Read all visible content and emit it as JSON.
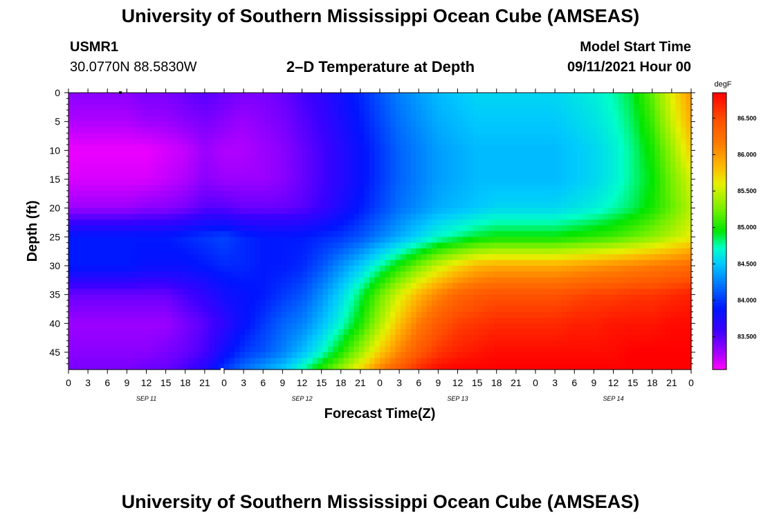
{
  "header": {
    "title": "University of Southern Mississippi Ocean Cube (AMSEAS)",
    "station": "USMR1",
    "location": "30.0770N  88.5830W",
    "subtitle": "2–D Temperature at Depth",
    "model_start_label": "Model Start Time",
    "model_start_value": "09/11/2021 Hour 00"
  },
  "footer": {
    "title": "University of Southern Mississippi Ocean Cube (AMSEAS)"
  },
  "chart_data": {
    "type": "heatmap",
    "title": "2–D Temperature at Depth",
    "xlabel": "Forecast Time(Z)",
    "ylabel": "Depth (ft)",
    "x_ticks": [
      "0",
      "3",
      "6",
      "9",
      "12",
      "15",
      "18",
      "21",
      "0",
      "3",
      "6",
      "9",
      "12",
      "15",
      "18",
      "21",
      "0",
      "3",
      "6",
      "9",
      "12",
      "15",
      "18",
      "21",
      "0",
      "3",
      "6",
      "9",
      "12",
      "15",
      "18",
      "21",
      "0"
    ],
    "date_labels": [
      "SEP 11",
      "SEP 12",
      "SEP 13",
      "SEP 14"
    ],
    "x_range_hours": [
      0,
      96
    ],
    "y_ticks": [
      0,
      5,
      10,
      15,
      20,
      25,
      30,
      35,
      40,
      45
    ],
    "y_range": [
      0,
      48
    ],
    "colorbar": {
      "units": "degF",
      "range": [
        83.05,
        86.85
      ],
      "tick_labels": [
        "83.500",
        "84.000",
        "84.500",
        "85.000",
        "85.500",
        "86.000",
        "86.500"
      ],
      "tick_values": [
        83.5,
        84.0,
        84.5,
        85.0,
        85.5,
        86.0,
        86.5
      ]
    },
    "field": {
      "times_hours": [
        0,
        3,
        6,
        9,
        12,
        15,
        18,
        21,
        24,
        27,
        30,
        33,
        36,
        39,
        42,
        45,
        48,
        51,
        54,
        57,
        60,
        63,
        66,
        69,
        72,
        75,
        78,
        81,
        84,
        87,
        90,
        93,
        96
      ],
      "depths_ft": [
        0,
        5,
        10,
        15,
        20,
        25,
        30,
        35,
        40,
        45,
        48
      ],
      "temperatures_degF": [
        [
          83.35,
          83.25,
          83.1,
          83.15,
          83.3,
          83.9,
          83.9,
          83.45,
          83.3,
          83.35,
          83.4
        ],
        [
          83.35,
          83.25,
          83.1,
          83.15,
          83.3,
          83.9,
          83.9,
          83.45,
          83.3,
          83.35,
          83.4
        ],
        [
          83.35,
          83.25,
          83.1,
          83.15,
          83.3,
          83.9,
          83.9,
          83.45,
          83.3,
          83.35,
          83.4
        ],
        [
          83.35,
          83.25,
          83.1,
          83.15,
          83.3,
          83.9,
          83.9,
          83.45,
          83.3,
          83.35,
          83.4
        ],
        [
          83.4,
          83.3,
          83.1,
          83.15,
          83.35,
          83.9,
          83.85,
          83.45,
          83.3,
          83.35,
          83.45
        ],
        [
          83.4,
          83.3,
          83.15,
          83.2,
          83.35,
          83.9,
          83.85,
          83.45,
          83.3,
          83.4,
          83.45
        ],
        [
          83.45,
          83.35,
          83.2,
          83.25,
          83.4,
          83.95,
          83.85,
          83.55,
          83.4,
          83.45,
          83.55
        ],
        [
          83.5,
          83.4,
          83.3,
          83.35,
          83.5,
          84.0,
          83.9,
          83.65,
          83.5,
          83.55,
          83.7
        ],
        [
          83.45,
          83.35,
          83.25,
          83.3,
          83.5,
          84.05,
          83.95,
          83.8,
          83.65,
          83.8,
          84.0
        ],
        [
          83.4,
          83.3,
          83.25,
          83.3,
          83.45,
          83.95,
          83.95,
          83.85,
          83.85,
          84.0,
          84.2
        ],
        [
          83.4,
          83.35,
          83.3,
          83.3,
          83.45,
          83.9,
          83.9,
          83.9,
          84.0,
          84.1,
          84.35
        ],
        [
          83.45,
          83.4,
          83.35,
          83.35,
          83.45,
          83.9,
          83.9,
          84.0,
          84.15,
          84.25,
          84.5
        ],
        [
          83.55,
          83.5,
          83.45,
          83.45,
          83.5,
          83.9,
          83.95,
          84.1,
          84.25,
          84.45,
          84.75
        ],
        [
          83.65,
          83.6,
          83.55,
          83.55,
          83.6,
          83.95,
          84.1,
          84.3,
          84.45,
          84.7,
          85.05
        ],
        [
          83.8,
          83.75,
          83.7,
          83.7,
          83.75,
          84.0,
          84.3,
          84.55,
          84.7,
          85.0,
          85.35
        ],
        [
          83.95,
          83.9,
          83.85,
          83.85,
          83.9,
          84.1,
          84.5,
          84.85,
          85.0,
          85.35,
          85.7
        ],
        [
          84.1,
          84.05,
          84.0,
          84.0,
          84.05,
          84.25,
          84.75,
          85.2,
          85.4,
          85.75,
          86.1
        ],
        [
          84.25,
          84.2,
          84.15,
          84.15,
          84.2,
          84.4,
          85.0,
          85.55,
          85.8,
          86.1,
          86.4
        ],
        [
          84.35,
          84.3,
          84.25,
          84.25,
          84.3,
          84.55,
          85.25,
          85.85,
          86.15,
          86.4,
          86.65
        ],
        [
          84.45,
          84.4,
          84.35,
          84.35,
          84.4,
          84.7,
          85.5,
          86.1,
          86.4,
          86.6,
          86.8
        ],
        [
          84.5,
          84.45,
          84.4,
          84.4,
          84.45,
          84.8,
          85.7,
          86.3,
          86.55,
          86.7,
          86.85
        ],
        [
          84.55,
          84.5,
          84.45,
          84.45,
          84.5,
          84.9,
          85.85,
          86.4,
          86.6,
          86.75,
          86.85
        ],
        [
          84.55,
          84.5,
          84.45,
          84.45,
          84.55,
          84.95,
          85.9,
          86.45,
          86.65,
          86.8,
          86.85
        ],
        [
          84.55,
          84.5,
          84.45,
          84.45,
          84.55,
          84.95,
          85.9,
          86.45,
          86.65,
          86.8,
          86.85
        ],
        [
          84.55,
          84.5,
          84.45,
          84.45,
          84.55,
          84.95,
          85.9,
          86.45,
          86.65,
          86.8,
          86.85
        ],
        [
          84.55,
          84.5,
          84.45,
          84.45,
          84.55,
          84.95,
          85.9,
          86.45,
          86.65,
          86.8,
          86.85
        ],
        [
          84.6,
          84.55,
          84.5,
          84.5,
          84.6,
          85.0,
          85.95,
          86.5,
          86.7,
          86.8,
          86.85
        ],
        [
          84.65,
          84.6,
          84.55,
          84.55,
          84.65,
          85.05,
          86.0,
          86.55,
          86.7,
          86.8,
          86.85
        ],
        [
          84.75,
          84.7,
          84.65,
          84.65,
          84.75,
          85.1,
          86.05,
          86.55,
          86.75,
          86.8,
          86.85
        ],
        [
          84.9,
          84.85,
          84.8,
          84.8,
          84.85,
          85.2,
          86.1,
          86.6,
          86.75,
          86.85,
          86.85
        ],
        [
          85.2,
          85.1,
          85.0,
          84.95,
          85.0,
          85.3,
          86.15,
          86.6,
          86.75,
          86.85,
          86.85
        ],
        [
          85.6,
          85.5,
          85.35,
          85.25,
          85.2,
          85.45,
          86.2,
          86.65,
          86.8,
          86.85,
          86.85
        ],
        [
          86.0,
          85.9,
          85.75,
          85.55,
          85.45,
          85.6,
          86.25,
          86.7,
          86.8,
          86.85,
          86.85
        ]
      ]
    },
    "point_markers": [
      {
        "time_hours": 8,
        "depth_ft": 0,
        "color": "#000000"
      },
      {
        "time_hours": 23.7,
        "depth_ft": 48,
        "color": "#ffffff"
      }
    ]
  }
}
